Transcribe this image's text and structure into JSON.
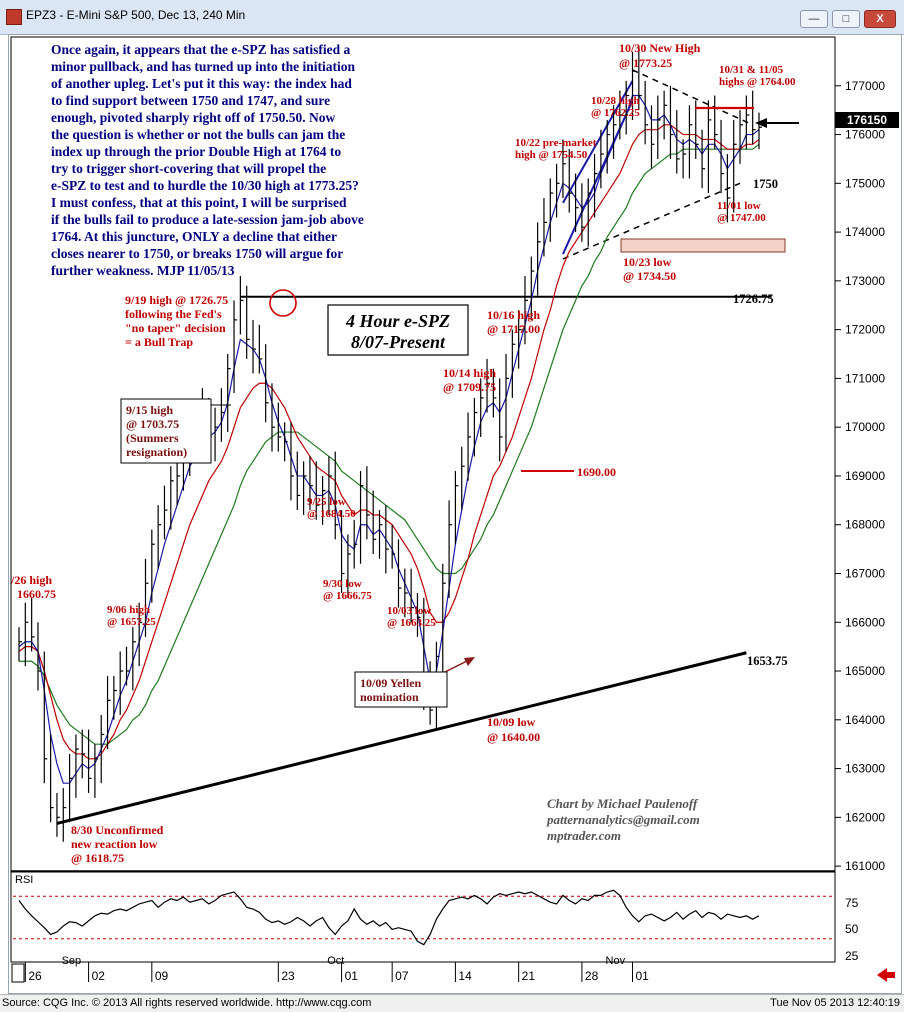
{
  "window": {
    "title": "EPZ3 - E-Mini S&P 500, Dec 13, 240 Min",
    "minimize": "—",
    "maximize": "□",
    "close": "X"
  },
  "status": {
    "left": "Source: CQG Inc. © 2013 All rights reserved worldwide. http://www.cqg.com",
    "right": "Tue Nov 05 2013 12:40:19"
  },
  "colors": {
    "price_bars": "#000000",
    "fast_ma": "#1a1aa8",
    "mid_ma": "#c00000",
    "slow_ma": "#1e7a1e",
    "annotation": "#c00000",
    "commentary": "#000080",
    "rsi_ref": "#c00000",
    "box_fill": "#f3d3c8"
  },
  "chart_data": {
    "type": "line",
    "instrument": "EPZ3",
    "ylim": [
      1609,
      1780
    ],
    "y_ticks": [
      1610,
      1620,
      1630,
      1640,
      1650,
      1660,
      1670,
      1680,
      1690,
      1700,
      1710,
      1720,
      1730,
      1740,
      1750,
      1760,
      1770
    ],
    "y_tick_labels": [
      "161000",
      "162000",
      "163000",
      "164000",
      "165000",
      "166000",
      "167000",
      "168000",
      "169000",
      "170000",
      "171000",
      "172000",
      "173000",
      "174000",
      "175000",
      "176000",
      "177000"
    ],
    "last_price": 1761.5,
    "last_price_label": "176150",
    "x_ticks": [
      {
        "i": 1,
        "label": "26"
      },
      {
        "i": 11,
        "label": "02"
      },
      {
        "i": 21,
        "label": "09"
      },
      {
        "i": 41,
        "label": "23"
      },
      {
        "i": 51,
        "label": "01"
      },
      {
        "i": 59,
        "label": "07"
      },
      {
        "i": 69,
        "label": "14"
      },
      {
        "i": 79,
        "label": "21"
      },
      {
        "i": 89,
        "label": "28"
      },
      {
        "i": 97,
        "label": "01"
      }
    ],
    "month_labels": [
      {
        "i": 8,
        "label": "Sep"
      },
      {
        "i": 50,
        "label": "Oct"
      },
      {
        "i": 94,
        "label": "Nov"
      }
    ],
    "closes": [
      1656,
      1660,
      1657,
      1650,
      1632,
      1622,
      1620,
      1622,
      1628,
      1634,
      1633,
      1628,
      1632,
      1637,
      1644,
      1646,
      1650,
      1650,
      1656,
      1660,
      1668,
      1676,
      1680,
      1683,
      1689,
      1690,
      1694,
      1700,
      1700,
      1703,
      1698,
      1700,
      1703,
      1712,
      1722,
      1726,
      1718,
      1716,
      1714,
      1705,
      1700,
      1698,
      1697,
      1690,
      1686,
      1690,
      1688,
      1684,
      1687,
      1690,
      1680,
      1670,
      1674,
      1676,
      1688,
      1682,
      1677,
      1680,
      1675,
      1674,
      1667,
      1666,
      1663,
      1661,
      1647,
      1642,
      1653,
      1668,
      1680,
      1688,
      1692,
      1698,
      1703,
      1706,
      1709,
      1706,
      1698,
      1710,
      1717,
      1720,
      1726,
      1732,
      1738,
      1742,
      1748,
      1750,
      1754,
      1748,
      1745,
      1741,
      1748,
      1752,
      1756,
      1760,
      1762,
      1764,
      1768,
      1773,
      1768,
      1762,
      1758,
      1763,
      1766,
      1760,
      1755,
      1756,
      1762,
      1758,
      1753,
      1763,
      1760,
      1752,
      1747,
      1758,
      1762,
      1764,
      1761,
      1761.5
    ],
    "ma_fast": [
      1655,
      1656,
      1656,
      1654,
      1646,
      1637,
      1631,
      1627,
      1627,
      1629,
      1631,
      1630,
      1631,
      1634,
      1637,
      1641,
      1645,
      1648,
      1652,
      1656,
      1660,
      1666,
      1671,
      1676,
      1680,
      1684,
      1688,
      1692,
      1694,
      1697,
      1698,
      1699,
      1701,
      1705,
      1712,
      1718,
      1717,
      1716,
      1714,
      1710,
      1705,
      1701,
      1698,
      1694,
      1690,
      1690,
      1688,
      1686,
      1686,
      1687,
      1684,
      1678,
      1676,
      1675,
      1680,
      1680,
      1678,
      1679,
      1677,
      1675,
      1671,
      1668,
      1665,
      1662,
      1655,
      1648,
      1650,
      1658,
      1667,
      1676,
      1683,
      1690,
      1696,
      1701,
      1704,
      1705,
      1703,
      1706,
      1711,
      1716,
      1721,
      1726,
      1732,
      1737,
      1742,
      1746,
      1750,
      1749,
      1747,
      1745,
      1746,
      1748,
      1752,
      1755,
      1758,
      1761,
      1764,
      1768,
      1768,
      1766,
      1763,
      1763,
      1764,
      1762,
      1759,
      1758,
      1759,
      1758,
      1756,
      1758,
      1758,
      1756,
      1753,
      1755,
      1757,
      1760,
      1760,
      1761
    ],
    "ma_mid": [
      1654,
      1655,
      1655,
      1654,
      1650,
      1645,
      1640,
      1636,
      1634,
      1633,
      1633,
      1632,
      1632,
      1633,
      1635,
      1637,
      1640,
      1642,
      1645,
      1648,
      1652,
      1656,
      1660,
      1664,
      1668,
      1672,
      1676,
      1680,
      1683,
      1686,
      1689,
      1691,
      1693,
      1696,
      1700,
      1704,
      1706,
      1708,
      1709,
      1709,
      1708,
      1706,
      1704,
      1701,
      1698,
      1696,
      1694,
      1692,
      1691,
      1690,
      1689,
      1686,
      1684,
      1682,
      1683,
      1683,
      1682,
      1682,
      1681,
      1680,
      1678,
      1676,
      1674,
      1671,
      1667,
      1662,
      1660,
      1660,
      1662,
      1665,
      1669,
      1673,
      1678,
      1682,
      1686,
      1690,
      1692,
      1695,
      1698,
      1702,
      1706,
      1710,
      1715,
      1720,
      1724,
      1729,
      1733,
      1736,
      1738,
      1740,
      1742,
      1744,
      1746,
      1748,
      1750,
      1752,
      1755,
      1758,
      1760,
      1761,
      1761,
      1761,
      1762,
      1762,
      1761,
      1760,
      1760,
      1760,
      1759,
      1759,
      1759,
      1758,
      1757,
      1757,
      1757,
      1758,
      1758,
      1759
    ],
    "ma_slow": [
      1652,
      1652,
      1652,
      1651,
      1649,
      1646,
      1643,
      1641,
      1639,
      1638,
      1637,
      1636,
      1635,
      1635,
      1635,
      1636,
      1637,
      1638,
      1640,
      1641,
      1643,
      1646,
      1648,
      1651,
      1654,
      1657,
      1660,
      1663,
      1666,
      1669,
      1672,
      1675,
      1678,
      1681,
      1684,
      1688,
      1691,
      1693,
      1695,
      1697,
      1698,
      1699,
      1699,
      1699,
      1699,
      1698,
      1697,
      1696,
      1695,
      1694,
      1693,
      1691,
      1690,
      1689,
      1688,
      1687,
      1686,
      1685,
      1684,
      1683,
      1682,
      1681,
      1679,
      1677,
      1675,
      1673,
      1671,
      1670,
      1670,
      1670,
      1671,
      1673,
      1675,
      1677,
      1680,
      1682,
      1685,
      1688,
      1691,
      1694,
      1697,
      1700,
      1704,
      1708,
      1712,
      1716,
      1720,
      1723,
      1726,
      1729,
      1731,
      1734,
      1736,
      1739,
      1741,
      1743,
      1745,
      1748,
      1750,
      1752,
      1753,
      1754,
      1755,
      1756,
      1756,
      1757,
      1757,
      1757,
      1757,
      1757,
      1757,
      1757,
      1757,
      1757,
      1757,
      1757,
      1757,
      1758
    ],
    "rsi": {
      "levels": [
        75,
        50,
        25
      ],
      "labels": [
        "75",
        "50",
        "25"
      ],
      "values": [
        70,
        60,
        52,
        45,
        38,
        30,
        33,
        40,
        45,
        44,
        40,
        46,
        52,
        55,
        54,
        58,
        60,
        58,
        62,
        66,
        68,
        70,
        62,
        68,
        72,
        70,
        74,
        68,
        70,
        72,
        66,
        70,
        76,
        78,
        80,
        72,
        62,
        60,
        56,
        48,
        44,
        46,
        42,
        45,
        50,
        46,
        40,
        46,
        50,
        38,
        30,
        40,
        46,
        60,
        48,
        42,
        46,
        40,
        44,
        36,
        38,
        36,
        34,
        22,
        18,
        30,
        48,
        60,
        70,
        72,
        74,
        72,
        76,
        72,
        66,
        74,
        78,
        76,
        78,
        80,
        78,
        80,
        76,
        72,
        68,
        66,
        76,
        70,
        66,
        72,
        70,
        76,
        76,
        80,
        82,
        76,
        62,
        52,
        45,
        52,
        54,
        50,
        46,
        50,
        56,
        48,
        54,
        58,
        50,
        56,
        54,
        48,
        54,
        52,
        50,
        52,
        48,
        52
      ],
      "label": "RSI"
    }
  },
  "annotations": {
    "commentary": [
      "Once again, it appears that the e-SPZ has satisfied a",
      "minor pullback, and has turned up into the initiation",
      "of another upleg. Let's put it this way: the index had",
      "to find support between 1750 and 1747, and sure",
      "enough, pivoted sharply right off of 1750.50. Now",
      "the question is whether or not the bulls can jam the",
      "index up through the prior Double High at 1764 to",
      "try to trigger short-covering that will propel the",
      "e-SPZ to test and to hurdle the 10/30 high at 1773.25?",
      "I must confess, that at this point, I will be surprised",
      "if the bulls fail to produce a late-session jam-job above",
      "1764. At this juncture, ONLY a decline that either",
      "closes nearer to 1750, or breaks 1750 will argue for",
      "further weakness.  MJP  11/05/13"
    ],
    "chart_title": [
      "4 Hour e-SPZ",
      "8/07-Present"
    ],
    "credit": [
      "Chart by Michael Paulenoff",
      "patternanalytics@gmail.com",
      "mptrader.com"
    ],
    "a_0826": [
      "/26 high",
      "1660.75"
    ],
    "a_0830": [
      "8/30 Unconfirmed",
      "new reaction low",
      "@ 1618.75"
    ],
    "a_0906": [
      "9/06 high",
      "@ 1657.25"
    ],
    "a_0915": [
      "9/15 high",
      "@ 1703.75",
      "(Summers",
      "resignation)"
    ],
    "a_0919": [
      "9/19 high @ 1726.75",
      "following the Fed's",
      "\"no taper\" decision",
      "= a Bull Trap"
    ],
    "a_0925": [
      "9/25 low",
      "@ 1684.50"
    ],
    "a_0930": [
      "9/30 low",
      "@ 1666.75"
    ],
    "a_1003": [
      "10/03 low",
      "@ 1663.25"
    ],
    "a_yellen": [
      "10/09 Yellen",
      "nomination"
    ],
    "a_1009": [
      "10/09 low",
      "@ 1640.00"
    ],
    "a_1014": [
      "10/14 high",
      "@ 1709.75"
    ],
    "a_1016": [
      "10/16 high",
      "@ 1717.00"
    ],
    "a_1690": "1690.00",
    "a_1022": [
      "10/22 pre-market",
      "high @ 1754.50"
    ],
    "a_1023": [
      "10/23 low",
      "@ 1734.50"
    ],
    "a_1028": [
      "10/28 high",
      "@ 1762.25"
    ],
    "a_1030": [
      "10/30 New High",
      "@ 1773.25"
    ],
    "a_1031": [
      "10/31 & 11/05",
      "highs @ 1764.00"
    ],
    "a_1101": [
      "11/01 low",
      "@ 1747.00"
    ],
    "level_1750": "1750",
    "level_1726": "1726.75",
    "level_1653": "1653.75"
  }
}
